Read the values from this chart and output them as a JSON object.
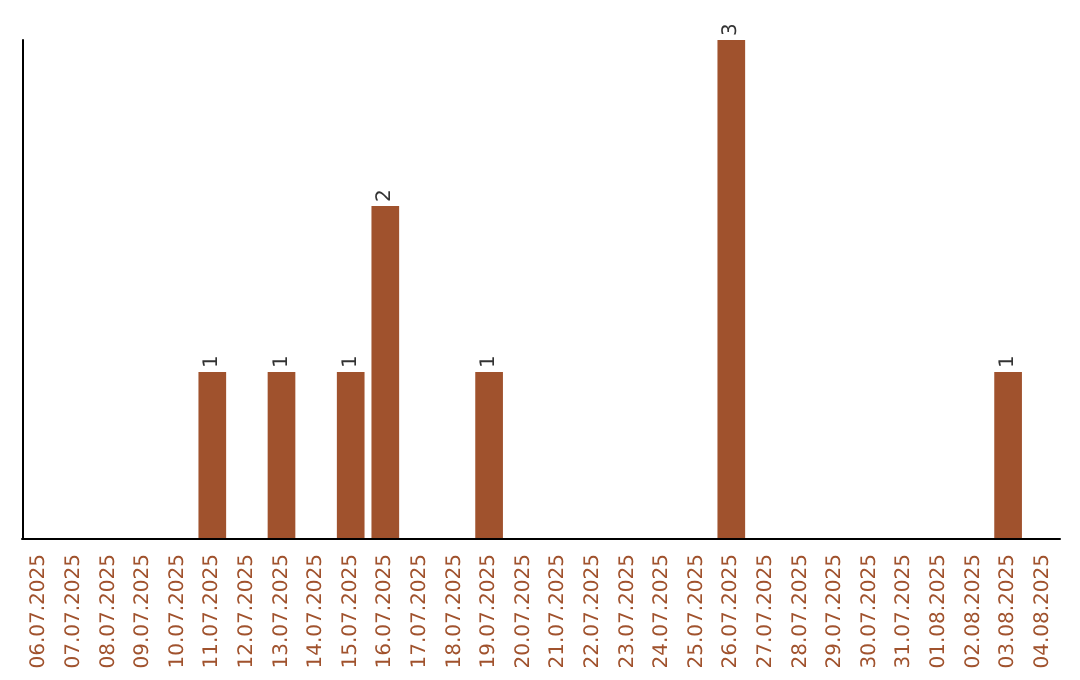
{
  "chart_data": {
    "type": "bar",
    "categories": [
      "06.07.2025",
      "07.07.2025",
      "08.07.2025",
      "09.07.2025",
      "10.07.2025",
      "11.07.2025",
      "12.07.2025",
      "13.07.2025",
      "14.07.2025",
      "15.07.2025",
      "16.07.2025",
      "17.07.2025",
      "18.07.2025",
      "19.07.2025",
      "20.07.2025",
      "21.07.2025",
      "22.07.2025",
      "23.07.2025",
      "24.07.2025",
      "25.07.2025",
      "26.07.2025",
      "27.07.2025",
      "28.07.2025",
      "29.07.2025",
      "30.07.2025",
      "31.07.2025",
      "01.08.2025",
      "02.08.2025",
      "03.08.2025",
      "04.08.2025"
    ],
    "values": [
      0,
      0,
      0,
      0,
      0,
      1,
      0,
      1,
      0,
      1,
      2,
      0,
      0,
      1,
      0,
      0,
      0,
      0,
      0,
      0,
      3,
      0,
      0,
      0,
      0,
      0,
      0,
      0,
      1,
      0
    ],
    "value_labels": [
      null,
      null,
      null,
      null,
      null,
      "1",
      null,
      "1",
      null,
      "1",
      "2",
      null,
      null,
      "1",
      null,
      null,
      null,
      null,
      null,
      null,
      "3",
      null,
      null,
      null,
      null,
      null,
      null,
      null,
      "1",
      null
    ],
    "color": "#a0522d",
    "tick_labels": "x"
  }
}
